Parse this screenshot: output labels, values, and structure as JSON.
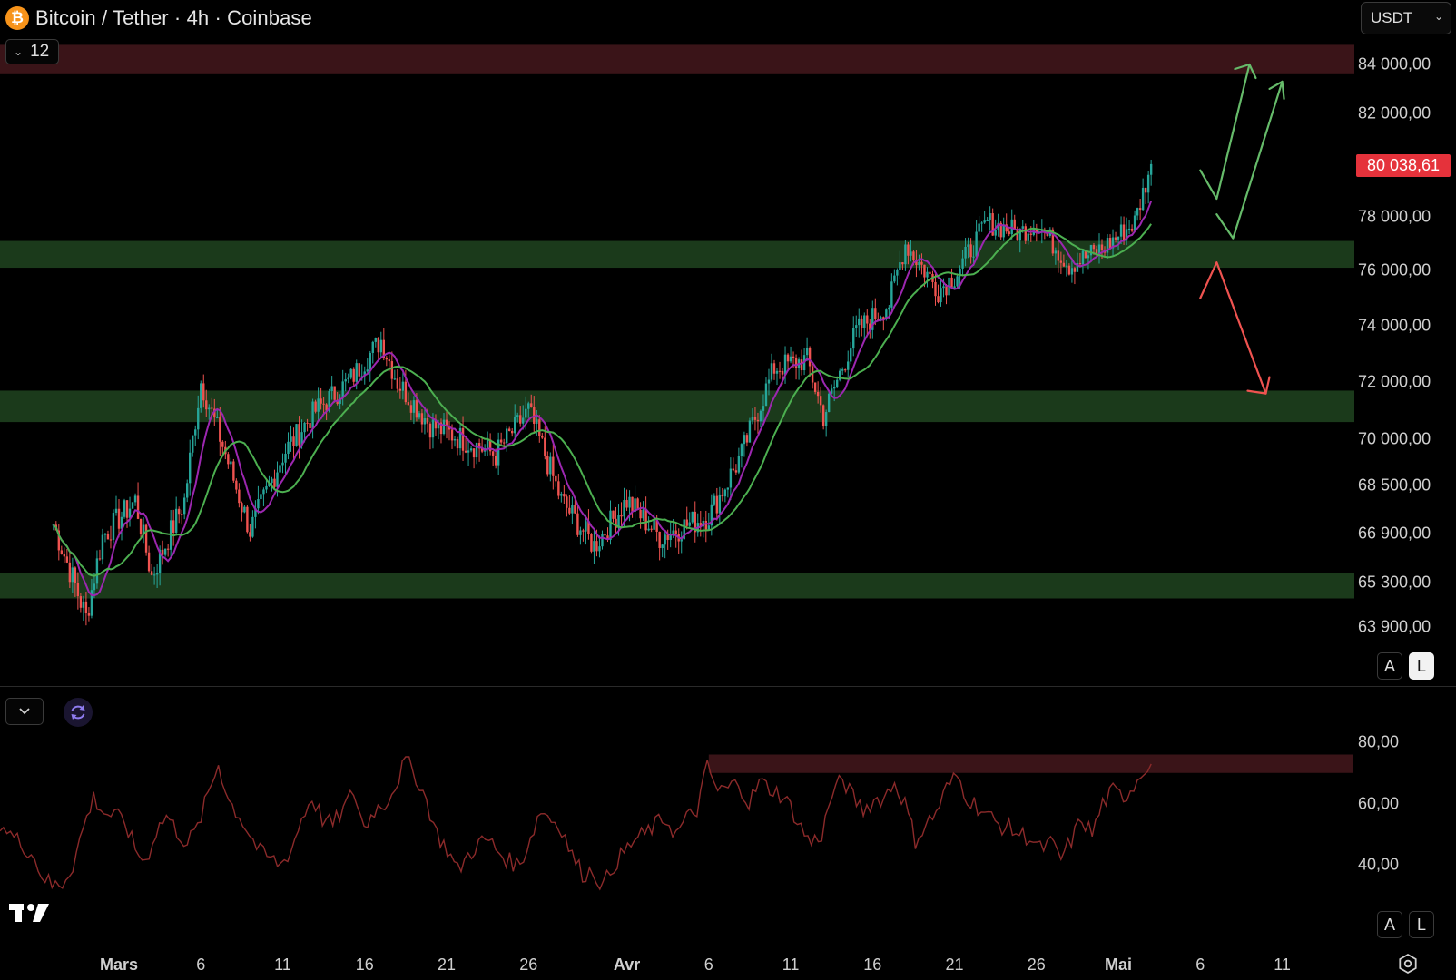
{
  "header": {
    "logo_glyph": "₿",
    "title": "Bitcoin / Tether · 4h · Coinbase",
    "currency": "USDT",
    "indicator_count": "12"
  },
  "price_axis": {
    "labels": [
      "84 000,00",
      "82 000,00",
      "78 000,00",
      "76 000,00",
      "74 000,00",
      "72 000,00",
      "70 000,00",
      "68 500,00",
      "66 900,00",
      "65 300,00",
      "63 900,00"
    ],
    "current_price": "80 038,61",
    "current_price_color": "#e5323b"
  },
  "rsi_axis": {
    "labels": [
      "80,00",
      "60,00",
      "40,00"
    ]
  },
  "time_axis": {
    "labels": [
      "Mars",
      "6",
      "11",
      "16",
      "21",
      "26",
      "Avr",
      "6",
      "11",
      "16",
      "21",
      "26",
      "Mai",
      "6",
      "11"
    ]
  },
  "scale_buttons": {
    "auto": "A",
    "log": "L"
  },
  "colors": {
    "bull_candle": "#26a69a",
    "bear_candle": "#ef5350",
    "ma_fast": "#9c27b0",
    "ma_slow": "#4caf50",
    "support_zone": "#1b3a1b",
    "resistance_zone": "#3a1418",
    "rsi_line": "#8b2a2a",
    "arrow_up": "#66bb6a",
    "arrow_down": "#ef5350"
  },
  "icons": {
    "tradingview_logo": "tradingview-logo-icon",
    "settings": "gear-icon",
    "refresh": "refresh-icon"
  },
  "chart_data": {
    "type": "candlestick",
    "symbol": "Bitcoin / Tether",
    "interval": "4h",
    "exchange": "Coinbase",
    "last_price": 80038.61,
    "y_ticks": [
      84000,
      82000,
      78000,
      76000,
      74000,
      72000,
      70000,
      68500,
      66900,
      65300,
      63900
    ],
    "x_ticks": [
      "Mars",
      "6",
      "11",
      "16",
      "21",
      "26",
      "Avr",
      "6",
      "11",
      "16",
      "21",
      "26",
      "Mai",
      "6",
      "11"
    ],
    "x_range": [
      "2025-02-25",
      "2025-05-12"
    ],
    "price_path": [
      {
        "date": "2025-02-25",
        "close": 67200
      },
      {
        "date": "2025-02-27",
        "close": 64200
      },
      {
        "date": "2025-02-28",
        "close": 66800
      },
      {
        "date": "2025-03-02",
        "close": 68000
      },
      {
        "date": "2025-03-03",
        "close": 65500
      },
      {
        "date": "2025-03-05",
        "close": 68000
      },
      {
        "date": "2025-03-06",
        "close": 72000
      },
      {
        "date": "2025-03-08",
        "close": 68700
      },
      {
        "date": "2025-03-09",
        "close": 67000
      },
      {
        "date": "2025-03-11",
        "close": 69500
      },
      {
        "date": "2025-03-13",
        "close": 71000
      },
      {
        "date": "2025-03-15",
        "close": 72000
      },
      {
        "date": "2025-03-17",
        "close": 73500
      },
      {
        "date": "2025-03-18",
        "close": 72000
      },
      {
        "date": "2025-03-20",
        "close": 70500
      },
      {
        "date": "2025-03-22",
        "close": 70000
      },
      {
        "date": "2025-03-24",
        "close": 69500
      },
      {
        "date": "2025-03-26",
        "close": 71000
      },
      {
        "date": "2025-03-28",
        "close": 68000
      },
      {
        "date": "2025-03-30",
        "close": 66500
      },
      {
        "date": "2025-04-01",
        "close": 68000
      },
      {
        "date": "2025-04-03",
        "close": 66800
      },
      {
        "date": "2025-04-06",
        "close": 67500
      },
      {
        "date": "2025-04-08",
        "close": 69500
      },
      {
        "date": "2025-04-10",
        "close": 72500
      },
      {
        "date": "2025-04-12",
        "close": 72800
      },
      {
        "date": "2025-04-13",
        "close": 70800
      },
      {
        "date": "2025-04-15",
        "close": 73800
      },
      {
        "date": "2025-04-17",
        "close": 74800
      },
      {
        "date": "2025-04-18",
        "close": 77000
      },
      {
        "date": "2025-04-20",
        "close": 75300
      },
      {
        "date": "2025-04-21",
        "close": 75800
      },
      {
        "date": "2025-04-23",
        "close": 77800
      },
      {
        "date": "2025-04-25",
        "close": 77400
      },
      {
        "date": "2025-04-26",
        "close": 77800
      },
      {
        "date": "2025-04-28",
        "close": 76200
      },
      {
        "date": "2025-04-30",
        "close": 76800
      },
      {
        "date": "2025-05-02",
        "close": 77800
      },
      {
        "date": "2025-05-03",
        "close": 80038.61
      }
    ],
    "moving_averages": [
      {
        "color": "#9c27b0"
      },
      {
        "color": "#4caf50"
      }
    ],
    "zones": [
      {
        "type": "resistance",
        "from": 83600,
        "to": 84800
      },
      {
        "type": "support",
        "from": 76100,
        "to": 77100
      },
      {
        "type": "support",
        "from": 70600,
        "to": 71700
      },
      {
        "type": "support",
        "from": 64800,
        "to": 65600
      }
    ],
    "rsi": {
      "y_ticks": [
        80,
        60,
        40
      ],
      "zone": {
        "from": 70,
        "to": 76
      },
      "values": [
        54,
        50,
        47,
        44,
        37,
        33,
        34,
        40,
        52,
        62,
        57,
        56,
        54,
        45,
        41,
        51,
        56,
        51,
        47,
        52,
        63,
        73,
        61,
        56,
        50,
        44,
        42,
        40,
        45,
        55,
        62,
        55,
        53,
        58,
        64,
        52,
        58,
        60,
        66,
        74,
        69,
        61,
        50,
        45,
        38,
        43,
        47,
        48,
        44,
        41,
        40,
        49,
        58,
        55,
        52,
        43,
        37,
        38,
        33,
        40,
        44,
        48,
        50,
        53,
        55,
        50,
        55,
        58,
        72,
        64,
        65,
        67,
        60,
        67,
        65,
        63,
        59,
        52,
        47,
        50,
        63,
        68,
        62,
        58,
        61,
        62,
        67,
        60,
        48,
        53,
        57,
        65,
        69,
        62,
        59,
        56,
        53,
        52,
        50,
        49,
        45,
        47,
        42,
        48,
        55,
        50,
        60,
        64,
        62,
        66,
        72
      ]
    }
  }
}
